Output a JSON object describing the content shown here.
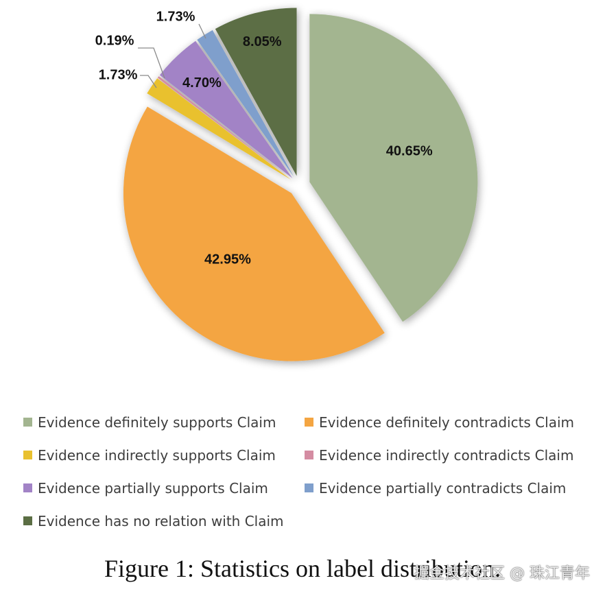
{
  "chart_data": {
    "type": "pie",
    "title": "",
    "slices": [
      {
        "label": "Evidence definitely supports Claim",
        "value": 40.65,
        "display": "40.65%",
        "color": "#a3b590"
      },
      {
        "label": "Evidence definitely contradicts Claim",
        "value": 42.95,
        "display": "42.95%",
        "color": "#f4a542"
      },
      {
        "label": "Evidence indirectly supports Claim",
        "value": 1.73,
        "display": "1.73%",
        "color": "#e9c12f"
      },
      {
        "label": "Evidence indirectly contradicts Claim",
        "value": 0.19,
        "display": "0.19%",
        "color": "#d48ca2"
      },
      {
        "label": "Evidence partially supports Claim",
        "value": 4.7,
        "display": "4.70%",
        "color": "#a283c6"
      },
      {
        "label": "Evidence partially contradicts Claim",
        "value": 1.73,
        "display": "1.73%",
        "color": "#7f9fcc"
      },
      {
        "label": "Evidence has no relation with Claim",
        "value": 8.05,
        "display": "8.05%",
        "color": "#5b6e44"
      }
    ],
    "legend_position": "bottom",
    "start": "top",
    "direction": "clockwise",
    "exploded": true
  },
  "legend": {
    "items": [
      {
        "label": "Evidence definitely supports Claim",
        "color": "#a3b590"
      },
      {
        "label": "Evidence definitely contradicts Claim",
        "color": "#f4a542"
      },
      {
        "label": "Evidence indirectly supports Claim",
        "color": "#e9c12f"
      },
      {
        "label": "Evidence indirectly contradicts Claim",
        "color": "#d48ca2"
      },
      {
        "label": "Evidence partially supports Claim",
        "color": "#a283c6"
      },
      {
        "label": "Evidence partially contradicts Claim",
        "color": "#7f9fcc"
      },
      {
        "label": "Evidence has no relation with Claim",
        "color": "#5b6e44"
      }
    ]
  },
  "caption": "Figure 1: Statistics on label distribution.",
  "watermark": "掘金技术社区 @ 珠江青年"
}
